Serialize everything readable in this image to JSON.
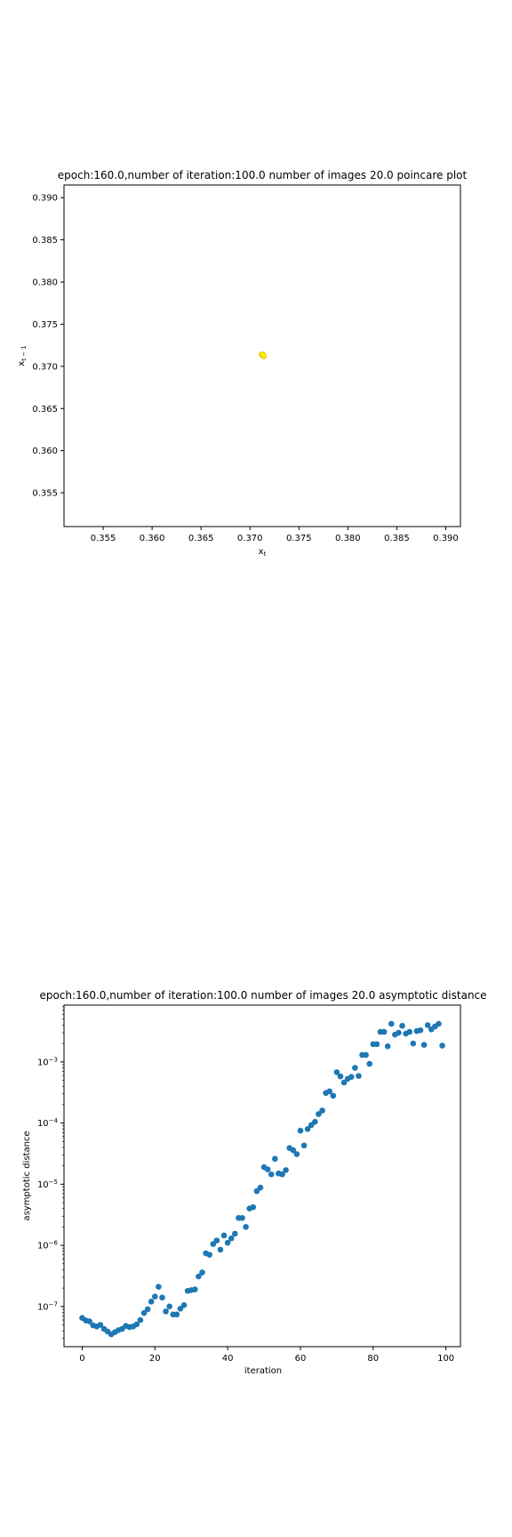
{
  "chart_data": [
    {
      "type": "scatter",
      "title": "epoch:160.0,number of iteration:100.0 number of images 20.0 poincare plot",
      "xlabel": "x_t",
      "ylabel": "x_{t-1}",
      "xlim": [
        0.351,
        0.3915
      ],
      "ylim": [
        0.351,
        0.3915
      ],
      "xticks": [
        "0.355",
        "0.360",
        "0.365",
        "0.370",
        "0.375",
        "0.380",
        "0.385",
        "0.390"
      ],
      "yticks": [
        "0.355",
        "0.360",
        "0.365",
        "0.370",
        "0.375",
        "0.380",
        "0.385",
        "0.390"
      ],
      "point_color": "#ffee00",
      "point_edge_color": "#e6c800",
      "points": [
        [
          0.3713,
          0.3713
        ],
        [
          0.3712,
          0.3714
        ],
        [
          0.3714,
          0.3712
        ],
        [
          0.3713,
          0.3714
        ],
        [
          0.3714,
          0.3713
        ]
      ]
    },
    {
      "type": "scatter",
      "title": "epoch:160.0,number of iteration:100.0  number of images 20.0 asymptotic distance",
      "xlabel": "iteration",
      "ylabel": "asymptotic distance",
      "xlim": [
        -5,
        104
      ],
      "ylog": true,
      "ylim": [
        2.2e-08,
        0.0085
      ],
      "xticks": [
        0,
        20,
        40,
        60,
        80,
        100
      ],
      "yticks": [
        1e-07,
        1e-06,
        1e-05,
        0.0001,
        0.001
      ],
      "point_color": "#1f77b4",
      "x": [
        0,
        1,
        2,
        3,
        4,
        5,
        6,
        7,
        8,
        9,
        10,
        11,
        12,
        13,
        14,
        15,
        16,
        17,
        18,
        19,
        20,
        21,
        22,
        23,
        24,
        25,
        26,
        27,
        28,
        29,
        30,
        31,
        32,
        33,
        34,
        35,
        36,
        37,
        38,
        39,
        40,
        41,
        42,
        43,
        44,
        45,
        46,
        47,
        48,
        49,
        50,
        51,
        52,
        53,
        54,
        55,
        56,
        57,
        58,
        59,
        60,
        61,
        62,
        63,
        64,
        65,
        66,
        67,
        68,
        69,
        70,
        71,
        72,
        73,
        74,
        75,
        76,
        77,
        78,
        79,
        80,
        81,
        82,
        83,
        84,
        85,
        86,
        87,
        88,
        89,
        90,
        91,
        92,
        93,
        94,
        95,
        96,
        97,
        98,
        99
      ],
      "y": [
        6.5e-08,
        5.9e-08,
        5.7e-08,
        4.9e-08,
        4.7e-08,
        5e-08,
        4.3e-08,
        3.9e-08,
        3.5e-08,
        3.8e-08,
        4.1e-08,
        4.3e-08,
        4.8e-08,
        4.6e-08,
        4.7e-08,
        5.1e-08,
        6e-08,
        7.8e-08,
        9e-08,
        1.2e-07,
        1.45e-07,
        2.1e-07,
        1.4e-07,
        8.3e-08,
        1e-07,
        7.4e-08,
        7.4e-08,
        9.2e-08,
        1.05e-07,
        1.8e-07,
        1.85e-07,
        1.9e-07,
        3.1e-07,
        3.6e-07,
        7.4e-07,
        7e-07,
        1.05e-06,
        1.2e-06,
        8.5e-07,
        1.45e-06,
        1.1e-06,
        1.3e-06,
        1.55e-06,
        2.8e-06,
        2.8e-06,
        2e-06,
        4e-06,
        4.2e-06,
        7.7e-06,
        8.8e-06,
        1.9e-05,
        1.75e-05,
        1.45e-05,
        2.6e-05,
        1.5e-05,
        1.45e-05,
        1.7e-05,
        3.9e-05,
        3.6e-05,
        3.1e-05,
        7.5e-05,
        4.3e-05,
        8e-05,
        9.3e-05,
        0.000105,
        0.00014,
        0.00016,
        0.00031,
        0.00033,
        0.00028,
        0.00068,
        0.00058,
        0.00046,
        0.00053,
        0.00057,
        0.0008,
        0.00059,
        0.0013,
        0.0013,
        0.00093,
        0.00195,
        0.00195,
        0.0031,
        0.0031,
        0.0018,
        0.0042,
        0.0028,
        0.003,
        0.0039,
        0.0029,
        0.0031,
        0.002,
        0.0032,
        0.0033,
        0.0019,
        0.004,
        0.0034,
        0.0038,
        0.0042,
        0.00185
      ]
    }
  ]
}
